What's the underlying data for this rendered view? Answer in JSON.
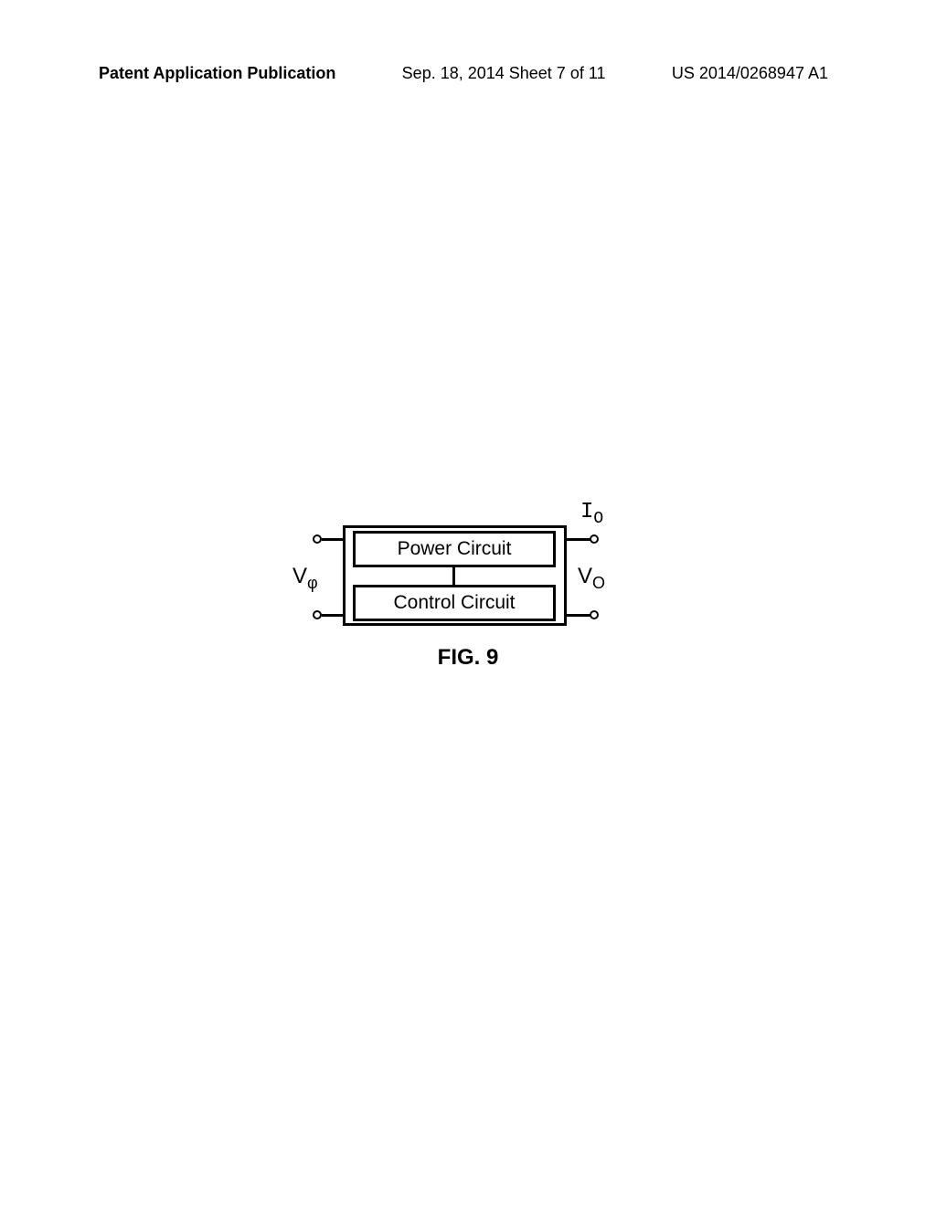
{
  "header": {
    "left": "Patent Application Publication",
    "center": "Sep. 18, 2014  Sheet 7 of 11",
    "right": "US 2014/0268947 A1"
  },
  "diagram": {
    "power_label": "Power Circuit",
    "control_label": "Control Circuit",
    "input_label_main": "V",
    "input_label_sub": "φ",
    "output_current_main": "I",
    "output_current_sub": "O",
    "output_voltage_main": "V",
    "output_voltage_sub": "O",
    "outer_border_color": "#000000",
    "inner_border_color": "#000000",
    "background_color": "#ffffff",
    "border_width": 3,
    "label_fontsize": 21,
    "terminal_label_fontsize": 24
  },
  "figure_caption": "FIG. 9"
}
